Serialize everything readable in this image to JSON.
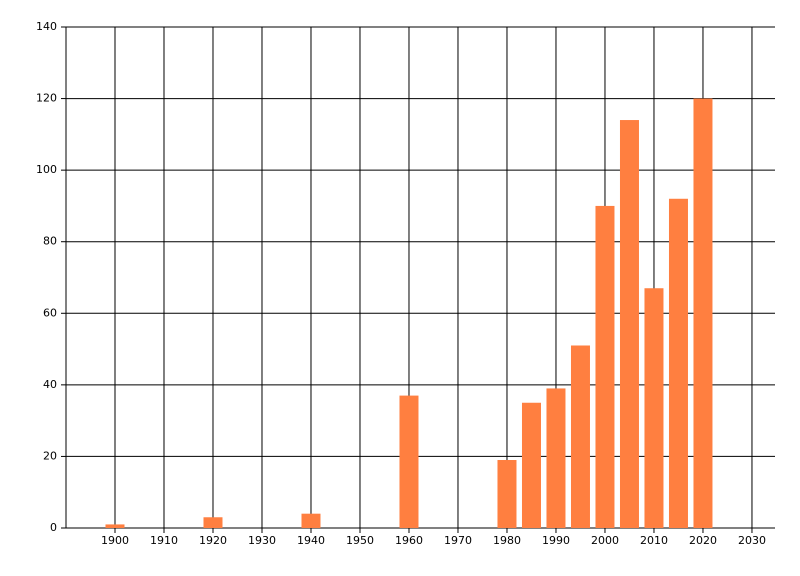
{
  "chart_data": {
    "type": "bar",
    "x": [
      1900,
      1920,
      1940,
      1960,
      1980,
      1985,
      1990,
      1995,
      2000,
      2005,
      2010,
      2015,
      2020
    ],
    "values": [
      1,
      3,
      4,
      37,
      19,
      35,
      39,
      51,
      90,
      114,
      67,
      92,
      120
    ],
    "color": "#ff7f40",
    "xlim": [
      1890,
      2034.7
    ],
    "xticks": [
      1900,
      1910,
      1920,
      1930,
      1940,
      1950,
      1960,
      1970,
      1980,
      1990,
      2000,
      2010,
      2020,
      2030
    ],
    "ylim": [
      0,
      140
    ],
    "yticks": [
      0,
      20,
      40,
      60,
      80,
      100,
      120,
      140
    ],
    "grid": true
  }
}
